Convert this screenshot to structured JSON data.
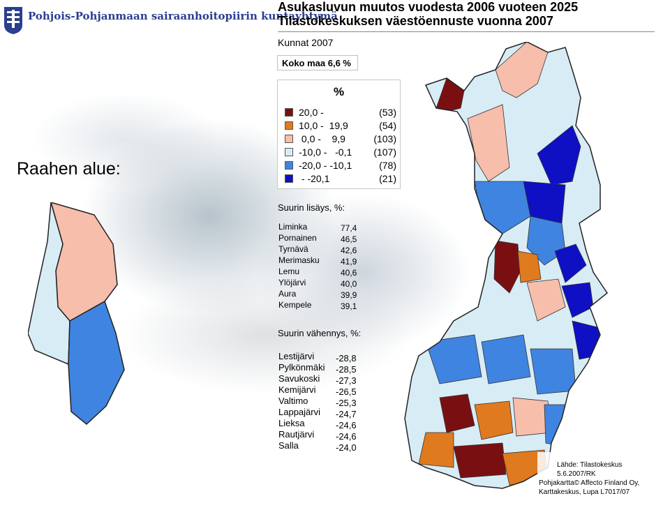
{
  "header": {
    "org_name": "Pohjois-Pohjanmaan sairaanhoitopiirin kuntayhtymä",
    "title_line1": "Asukasluvun muutos vuodesta 2006 vuoteen 2025",
    "title_line2": "Tilastokeskuksen väestöennuste vuonna 2007",
    "subtitle": "Kunnat 2007",
    "country_total": "Koko maa 6,6 %"
  },
  "region_label": "Raahen alue:",
  "legend": {
    "title": "%",
    "items": [
      {
        "range": "20,0 -",
        "count": "(53)",
        "color": "#7a0f12"
      },
      {
        "range": "10,0 -  19,9",
        "count": "(54)",
        "color": "#e07a1f"
      },
      {
        "range": " 0,0 -    9,9",
        "count": "(103)",
        "color": "#f6beab"
      },
      {
        "range": "-10,0 -   -0,1",
        "count": "(107)",
        "color": "#d8ecf6"
      },
      {
        "range": "-20,0 - -10,1",
        "count": "(78)",
        "color": "#3f84e0"
      },
      {
        "range": " - -20,1",
        "count": "(21)",
        "color": "#0f10c4"
      }
    ]
  },
  "largest_increase": {
    "label": "Suurin lisäys, %:",
    "rows": [
      {
        "name": "Liminka",
        "value": "77,4"
      },
      {
        "name": "Pornainen",
        "value": "46,5"
      },
      {
        "name": "Tyrnävä",
        "value": "42,6"
      },
      {
        "name": "Merimasku",
        "value": "41,9"
      },
      {
        "name": "Lemu",
        "value": "40,6"
      },
      {
        "name": "Ylöjärvi",
        "value": "40,0"
      },
      {
        "name": "Aura",
        "value": "39,9"
      },
      {
        "name": "Kempele",
        "value": "39,1"
      }
    ]
  },
  "largest_decrease": {
    "label": "Suurin vähennys, %:",
    "rows": [
      {
        "name": "Lestijärvi",
        "value": "-28,8"
      },
      {
        "name": "Pylkönmäki",
        "value": "-28,5"
      },
      {
        "name": "Savukoski",
        "value": "-27,3"
      },
      {
        "name": "Kemijärvi",
        "value": "-26,5"
      },
      {
        "name": "Valtimo",
        "value": "-25,3"
      },
      {
        "name": "Lappajärvi",
        "value": "-24,7"
      },
      {
        "name": "Lieksa",
        "value": "-24,6"
      },
      {
        "name": "Rautjärvi",
        "value": "-24,6"
      },
      {
        "name": "Salla",
        "value": "-24,0"
      }
    ]
  },
  "source": {
    "line1": "Lähde: Tilastokeskus",
    "line2": "5.6.2007/RK"
  },
  "map_credit": {
    "line1": "Pohjakartta© Affecto Finland Oy,",
    "line2": "Karttakeskus, Lupa L7017/07"
  },
  "colors": {
    "dark_red": "#7a0f12",
    "orange": "#e07a1f",
    "pink": "#f6beab",
    "light_blue": "#d8ecf6",
    "mid_blue": "#3f84e0",
    "dark_blue": "#0f10c4"
  }
}
